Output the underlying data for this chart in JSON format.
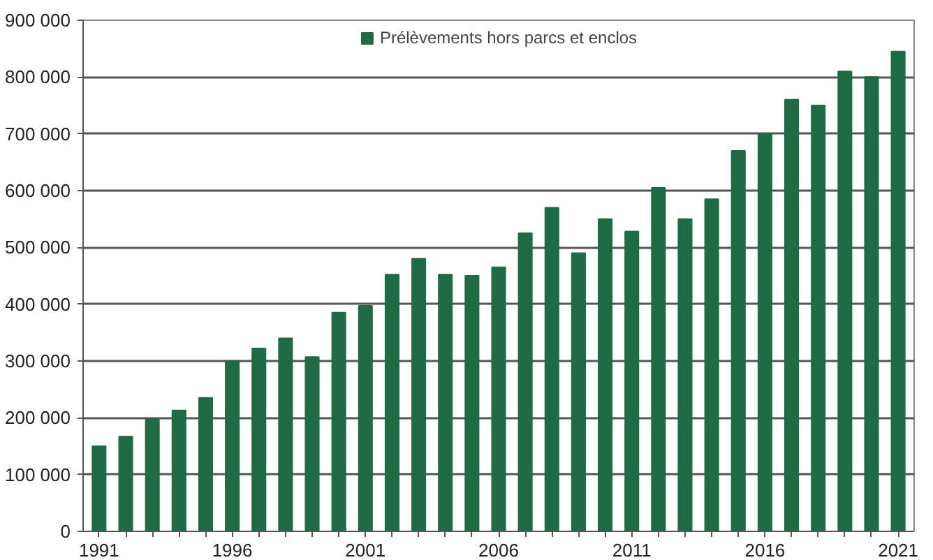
{
  "chart_data": {
    "type": "bar",
    "categories": [
      "1991",
      null,
      null,
      null,
      null,
      "1996",
      null,
      null,
      null,
      null,
      "2001",
      null,
      null,
      null,
      null,
      "2006",
      null,
      null,
      null,
      null,
      "2011",
      null,
      null,
      null,
      null,
      "2016",
      null,
      null,
      null,
      null,
      "2021"
    ],
    "series": [
      {
        "name": "Prélèvements hors parcs et enclos",
        "color": "#1e6b45",
        "values": [
          150000,
          167000,
          197000,
          213000,
          235000,
          300000,
          322000,
          340000,
          307000,
          385000,
          397000,
          452000,
          480000,
          452000,
          450000,
          465000,
          525000,
          570000,
          490000,
          550000,
          528000,
          605000,
          550000,
          585000,
          670000,
          700000,
          760000,
          750000,
          810000,
          800000,
          845000
        ]
      }
    ],
    "ylim": [
      0,
      900000
    ],
    "yticks": [
      0,
      {
        "value": 100000,
        "label": "100 000"
      },
      {
        "value": 200000,
        "label": "200 000"
      },
      {
        "value": 300000,
        "label": "300 000"
      },
      {
        "value": 400000,
        "label": "400 000"
      },
      {
        "value": 500000,
        "label": "500 000"
      },
      {
        "value": 600000,
        "label": "600 000"
      },
      {
        "value": 700000,
        "label": "700 000"
      },
      {
        "value": 800000,
        "label": "800 000"
      },
      {
        "value": 900000,
        "label": "900 000"
      }
    ],
    "grid": "y",
    "legend": "top"
  }
}
